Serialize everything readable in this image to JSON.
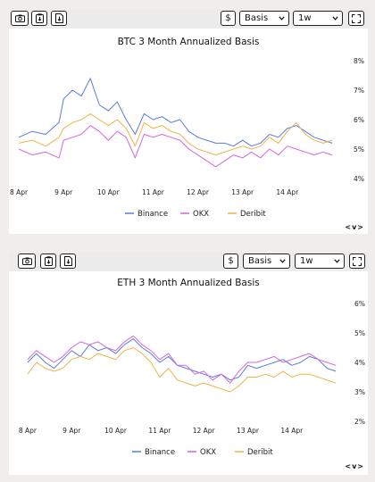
{
  "panels": [
    {
      "toolbar": {
        "currency_label": "$",
        "mode_value": "Basis",
        "range_value": "1w"
      },
      "nav_label": "<v>",
      "chart_data": {
        "type": "line",
        "title": "BTC 3 Month Annualized Basis",
        "x_ticks": [
          "8 Apr",
          "9 Apr",
          "10 Apr",
          "11 Apr",
          "12 Apr",
          "13 Apr",
          "14 Apr"
        ],
        "y_ticks": [
          "8%",
          "7%",
          "6%",
          "5%",
          "4%"
        ],
        "ylim": [
          4,
          8
        ],
        "xlim": [
          -0.1,
          7.2
        ],
        "grid": false,
        "legend_position": "bottom",
        "series": [
          {
            "name": "Binance",
            "color": "#5b7be0",
            "x": [
              0,
              0.3,
              0.6,
              0.9,
              1.0,
              1.2,
              1.4,
              1.6,
              1.8,
              2.0,
              2.2,
              2.4,
              2.6,
              2.8,
              3.0,
              3.2,
              3.4,
              3.6,
              3.8,
              4.0,
              4.2,
              4.4,
              4.6,
              4.8,
              5.0,
              5.2,
              5.4,
              5.6,
              5.8,
              6.0,
              6.2,
              6.4,
              6.6,
              6.8,
              7.0
            ],
            "y": [
              5.4,
              5.6,
              5.5,
              5.9,
              6.7,
              7.0,
              6.8,
              7.4,
              6.5,
              6.3,
              6.6,
              6.0,
              5.5,
              6.2,
              6.0,
              6.1,
              5.9,
              6.0,
              5.6,
              5.4,
              5.3,
              5.2,
              5.2,
              5.1,
              5.3,
              5.1,
              5.2,
              5.5,
              5.4,
              5.7,
              5.8,
              5.6,
              5.4,
              5.3,
              5.2
            ]
          },
          {
            "name": "OKX",
            "color": "#d466e0",
            "x": [
              0,
              0.3,
              0.6,
              0.9,
              1.0,
              1.2,
              1.4,
              1.6,
              1.8,
              2.0,
              2.2,
              2.4,
              2.6,
              2.8,
              3.0,
              3.2,
              3.4,
              3.6,
              3.8,
              4.0,
              4.2,
              4.4,
              4.6,
              4.8,
              5.0,
              5.2,
              5.4,
              5.6,
              5.8,
              6.0,
              6.2,
              6.4,
              6.6,
              6.8,
              7.0
            ],
            "y": [
              5.0,
              4.8,
              4.9,
              4.7,
              5.3,
              5.4,
              5.5,
              5.8,
              5.6,
              5.3,
              5.6,
              5.4,
              4.7,
              5.5,
              5.4,
              5.5,
              5.4,
              5.3,
              5.0,
              4.8,
              4.6,
              4.4,
              4.6,
              4.8,
              4.7,
              4.9,
              4.7,
              5.0,
              4.8,
              5.1,
              5.0,
              4.9,
              4.8,
              4.9,
              4.8
            ]
          },
          {
            "name": "Deribit",
            "color": "#f2b24a",
            "x": [
              0,
              0.3,
              0.6,
              0.9,
              1.0,
              1.2,
              1.4,
              1.6,
              1.8,
              2.0,
              2.2,
              2.4,
              2.6,
              2.8,
              3.0,
              3.2,
              3.4,
              3.6,
              3.8,
              4.0,
              4.2,
              4.4,
              4.6,
              4.8,
              5.0,
              5.2,
              5.4,
              5.6,
              5.8,
              6.0,
              6.2,
              6.4,
              6.6,
              6.8,
              7.0
            ],
            "y": [
              5.2,
              5.3,
              5.1,
              5.4,
              5.7,
              5.9,
              6.0,
              6.2,
              6.0,
              5.8,
              6.0,
              5.7,
              5.1,
              5.9,
              5.7,
              5.8,
              5.6,
              5.5,
              5.2,
              5.0,
              4.9,
              4.8,
              4.9,
              5.0,
              5.1,
              5.0,
              5.1,
              5.4,
              5.2,
              5.6,
              5.9,
              5.5,
              5.3,
              5.2,
              5.3
            ]
          }
        ]
      }
    },
    {
      "toolbar": {
        "currency_label": "$",
        "mode_value": "Basis",
        "range_value": "1w"
      },
      "nav_label": "<v>",
      "chart_data": {
        "type": "line",
        "title": "ETH 3 Month Annualized Basis",
        "x_ticks": [
          "8 Apr",
          "9 Apr",
          "10 Apr",
          "11 Apr",
          "12 Apr",
          "13 Apr",
          "14 Apr"
        ],
        "y_ticks": [
          "6%",
          "5%",
          "4%",
          "3%",
          "2%"
        ],
        "ylim": [
          2,
          6
        ],
        "xlim": [
          -0.1,
          7.2
        ],
        "grid": false,
        "legend_position": "bottom",
        "series": [
          {
            "name": "Binance",
            "color": "#5b7be0",
            "x": [
              0,
              0.2,
              0.4,
              0.6,
              0.8,
              1.0,
              1.2,
              1.4,
              1.6,
              1.8,
              2.0,
              2.2,
              2.4,
              2.6,
              2.8,
              3.0,
              3.2,
              3.4,
              3.6,
              3.8,
              4.0,
              4.2,
              4.4,
              4.6,
              4.8,
              5.0,
              5.2,
              5.4,
              5.6,
              5.8,
              6.0,
              6.2,
              6.4,
              6.6,
              6.8,
              7.0
            ],
            "y": [
              4.0,
              4.3,
              4.0,
              3.8,
              4.1,
              4.4,
              4.2,
              4.6,
              4.4,
              4.5,
              4.3,
              4.6,
              4.8,
              4.5,
              4.3,
              4.0,
              4.2,
              3.9,
              3.8,
              3.7,
              3.6,
              3.5,
              3.6,
              3.4,
              3.5,
              3.9,
              3.8,
              3.9,
              4.0,
              4.1,
              3.9,
              4.0,
              4.2,
              4.1,
              3.8,
              3.7
            ]
          },
          {
            "name": "OKX",
            "color": "#d466e0",
            "x": [
              0,
              0.2,
              0.4,
              0.6,
              0.8,
              1.0,
              1.2,
              1.4,
              1.6,
              1.8,
              2.0,
              2.2,
              2.4,
              2.6,
              2.8,
              3.0,
              3.2,
              3.4,
              3.6,
              3.8,
              4.0,
              4.2,
              4.4,
              4.6,
              4.8,
              5.0,
              5.2,
              5.4,
              5.6,
              5.8,
              6.0,
              6.2,
              6.4,
              6.6,
              6.8,
              7.0
            ],
            "y": [
              4.1,
              4.4,
              4.2,
              4.0,
              4.2,
              4.5,
              4.7,
              4.6,
              4.7,
              4.5,
              4.4,
              4.7,
              4.9,
              4.6,
              4.4,
              4.1,
              4.3,
              3.9,
              3.9,
              3.6,
              3.7,
              3.4,
              3.6,
              3.3,
              3.7,
              4.0,
              4.0,
              4.1,
              4.2,
              4.0,
              4.1,
              4.2,
              4.3,
              4.1,
              4.0,
              3.9
            ]
          },
          {
            "name": "Deribit",
            "color": "#f2b24a",
            "x": [
              0,
              0.2,
              0.4,
              0.6,
              0.8,
              1.0,
              1.2,
              1.4,
              1.6,
              1.8,
              2.0,
              2.2,
              2.4,
              2.6,
              2.8,
              3.0,
              3.2,
              3.4,
              3.6,
              3.8,
              4.0,
              4.2,
              4.4,
              4.6,
              4.8,
              5.0,
              5.2,
              5.4,
              5.6,
              5.8,
              6.0,
              6.2,
              6.4,
              6.6,
              6.8,
              7.0
            ],
            "y": [
              3.6,
              4.0,
              3.8,
              3.7,
              3.8,
              4.1,
              4.2,
              4.1,
              4.3,
              4.2,
              4.1,
              4.4,
              4.5,
              4.3,
              4.0,
              3.5,
              3.8,
              3.4,
              3.3,
              3.2,
              3.3,
              3.2,
              3.1,
              3.0,
              3.2,
              3.5,
              3.5,
              3.6,
              3.5,
              3.7,
              3.5,
              3.6,
              3.6,
              3.5,
              3.4,
              3.3
            ]
          }
        ]
      }
    }
  ]
}
